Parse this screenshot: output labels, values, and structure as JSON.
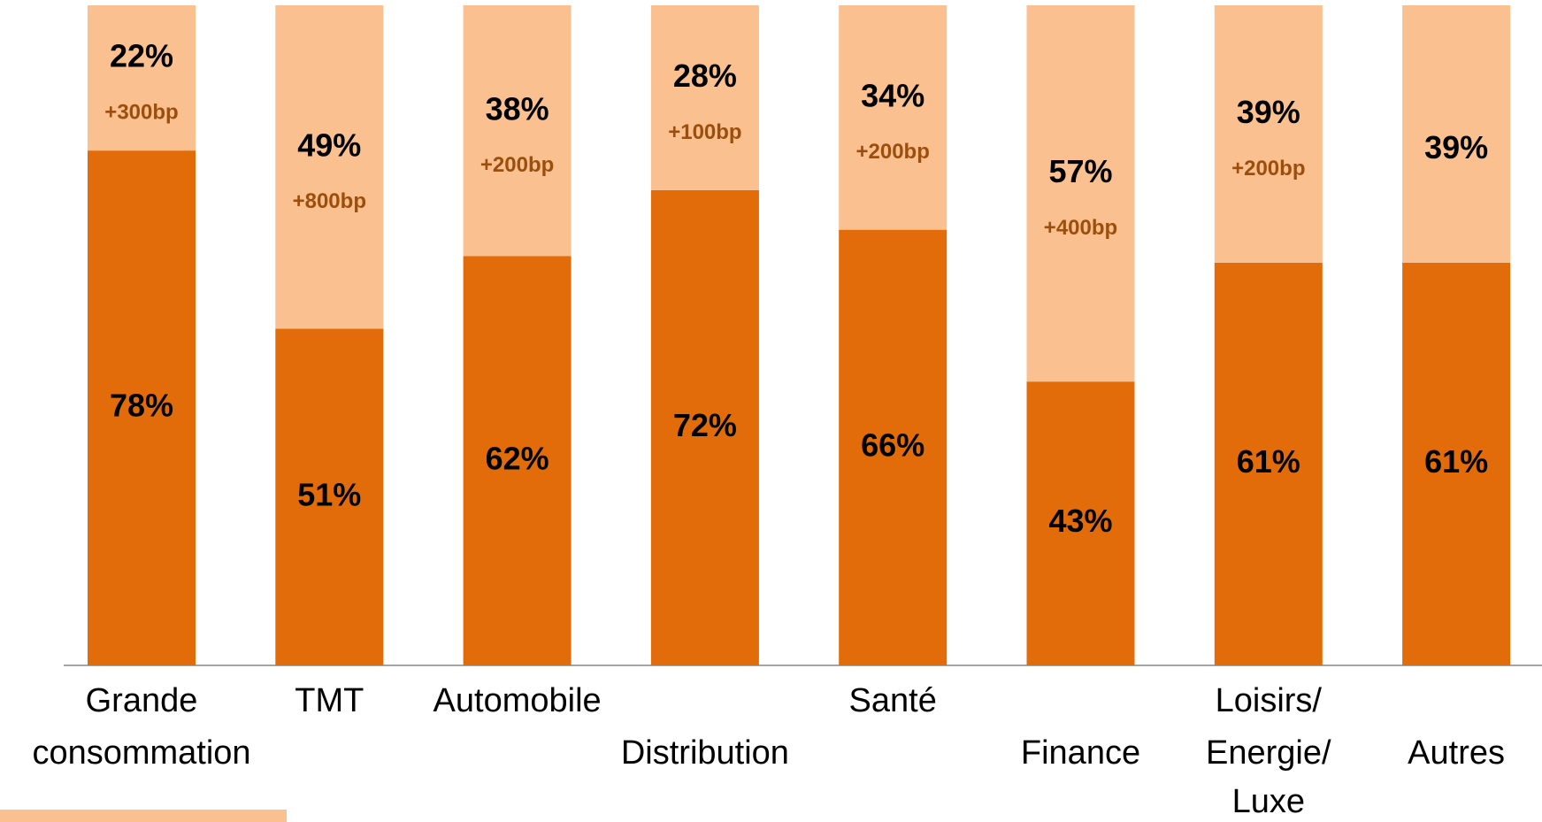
{
  "chart_data": {
    "type": "stacked_bar",
    "categories": [
      "Grande consommation",
      "TMT",
      "Automobile",
      "Distribution",
      "Santé",
      "Finance",
      "Loisirs/ Energie/ Luxe",
      "Autres"
    ],
    "series": [
      {
        "color": "#e36c0a",
        "values": [
          78,
          51,
          62,
          72,
          66,
          43,
          61,
          61
        ],
        "value_labels": [
          "78%",
          "51%",
          "62%",
          "72%",
          "66%",
          "43%",
          "61%",
          "61%"
        ]
      },
      {
        "color": "#fac090",
        "values": [
          22,
          49,
          38,
          28,
          34,
          57,
          39,
          39
        ],
        "value_labels": [
          "22%",
          "49%",
          "38%",
          "28%",
          "34%",
          "57%",
          "39%",
          "39%"
        ]
      }
    ],
    "annotations": [
      "+300bp",
      "+800bp",
      "+200bp",
      "+100bp",
      "+200bp",
      "+400bp",
      "+200bp",
      null
    ],
    "ylim": [
      0,
      100
    ]
  }
}
